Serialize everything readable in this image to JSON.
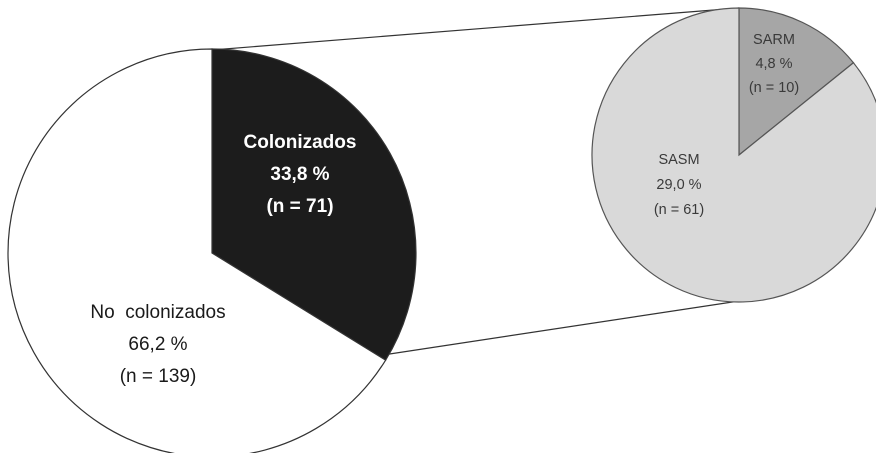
{
  "chart_data": {
    "type": "pie",
    "title": "",
    "main_pie": {
      "slices": [
        {
          "name": "Colonizados",
          "percent_text": "33,8 %",
          "n_text": "(n = 71)",
          "value": 33.8,
          "n": 71,
          "color": "#1c1c1c"
        },
        {
          "name": "No  colonizados",
          "percent_text": "66,2 %",
          "n_text": "(n = 139)",
          "value": 66.2,
          "n": 139,
          "color": "#ffffff"
        }
      ]
    },
    "breakdown_pie": {
      "of": "Colonizados",
      "slices": [
        {
          "name": "SARM",
          "percent_text": "4,8 %",
          "n_text": "(n = 10)",
          "value": 4.8,
          "n": 10,
          "color": "#a6a6a6"
        },
        {
          "name": "SASM",
          "percent_text": "29,0 %",
          "n_text": "(n = 61)",
          "value": 29.0,
          "n": 61,
          "color": "#d9d9d9"
        }
      ]
    }
  }
}
